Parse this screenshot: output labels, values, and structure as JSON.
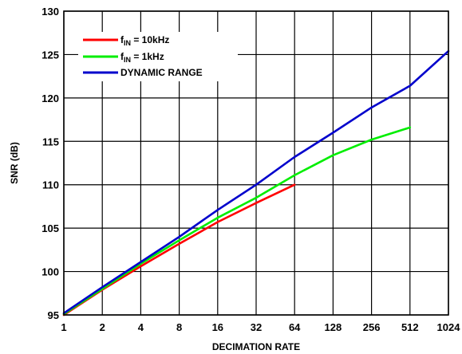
{
  "chart_data": {
    "type": "line",
    "title": "",
    "xlabel": "DECIMATION RATE",
    "ylabel": "SNR (dB)",
    "x_scale": "log2",
    "x": [
      1,
      2,
      4,
      8,
      16,
      32,
      64,
      128,
      256,
      512,
      1024
    ],
    "x_tick_labels": [
      "1",
      "2",
      "4",
      "8",
      "16",
      "32",
      "64",
      "128",
      "256",
      "512",
      "1024"
    ],
    "ylim": [
      95,
      130
    ],
    "y_ticks": [
      95,
      100,
      105,
      110,
      115,
      120,
      125,
      130
    ],
    "y_tick_labels": [
      "95",
      "100",
      "105",
      "110",
      "115",
      "120",
      "125",
      "130"
    ],
    "grid": true,
    "legend_position": "top-left",
    "series": [
      {
        "label": {
          "main": "f",
          "sub": "IN",
          "rest": " = 10kHz"
        },
        "color": "#ff0000",
        "points": [
          [
            1,
            95.0
          ],
          [
            2,
            97.9
          ],
          [
            4,
            100.6
          ],
          [
            8,
            103.2
          ],
          [
            16,
            105.7
          ],
          [
            32,
            107.9
          ],
          [
            64,
            110.0
          ]
        ]
      },
      {
        "label": {
          "main": "f",
          "sub": "IN",
          "rest": " = 1kHz"
        },
        "color": "#00ee00",
        "points": [
          [
            1,
            95.1
          ],
          [
            2,
            98.0
          ],
          [
            4,
            100.9
          ],
          [
            8,
            103.6
          ],
          [
            16,
            106.2
          ],
          [
            32,
            108.5
          ],
          [
            64,
            111.1
          ],
          [
            128,
            113.4
          ],
          [
            256,
            115.2
          ],
          [
            512,
            116.6
          ]
        ]
      },
      {
        "label": {
          "main": "DYNAMIC RANGE",
          "sub": "",
          "rest": ""
        },
        "color": "#0000cc",
        "points": [
          [
            1,
            95.2
          ],
          [
            2,
            98.2
          ],
          [
            4,
            101.1
          ],
          [
            8,
            104.0
          ],
          [
            16,
            107.1
          ],
          [
            32,
            110.0
          ],
          [
            64,
            113.2
          ],
          [
            128,
            116.0
          ],
          [
            256,
            118.9
          ],
          [
            512,
            121.4
          ],
          [
            1024,
            125.4
          ]
        ]
      }
    ]
  }
}
